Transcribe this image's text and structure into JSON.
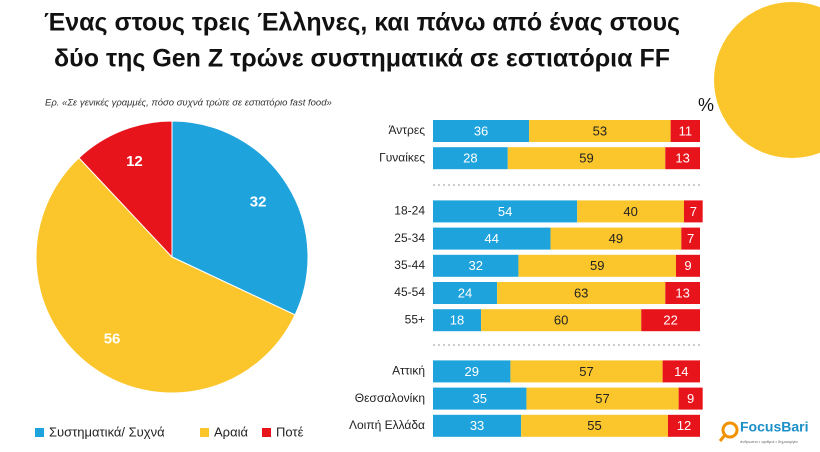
{
  "header": {
    "title_lines": [
      "Ένας στους τρεις Έλληνες, και πάνω από ένας στους",
      "δύο της Gen Z τρώνε συστηματικά σε εστιατόρια FF"
    ],
    "question": "Ερ. «Σε γενικές γραμμές, πόσο συχνά τρώτε σε εστιατόριο fast food»",
    "unit": "%",
    "brand": "FocusBari",
    "tagline": "άνθρωποι • αριθμοί • δημιουργία"
  },
  "chart_data": [
    {
      "type": "pie",
      "categories": [
        "Συστηματικά/ Συχνά",
        "Αραιά",
        "Ποτέ"
      ],
      "values": [
        32,
        56,
        12
      ],
      "colors": [
        "#1fa3dc",
        "#fbc62b",
        "#e8141c"
      ],
      "legend": "bottom"
    },
    {
      "type": "hbar-stacked",
      "categories": [
        "Άντρες",
        "Γυναίκες",
        "18-24",
        "25-34",
        "35-44",
        "45-54",
        "55+",
        "Αττική",
        "Θεσσαλονίκη",
        "Λοιπή Ελλάδα"
      ],
      "xlim": [
        0,
        100
      ],
      "series": [
        {
          "color": "#1fa3dc",
          "values": [
            36,
            28,
            54,
            44,
            32,
            24,
            18,
            29,
            35,
            33
          ]
        },
        {
          "color": "#fbc62b",
          "values": [
            53,
            59,
            40,
            49,
            59,
            63,
            60,
            57,
            57,
            55
          ]
        },
        {
          "color": "#e8141c",
          "values": [
            11,
            13,
            7,
            7,
            9,
            13,
            22,
            14,
            9,
            12
          ]
        }
      ]
    }
  ]
}
